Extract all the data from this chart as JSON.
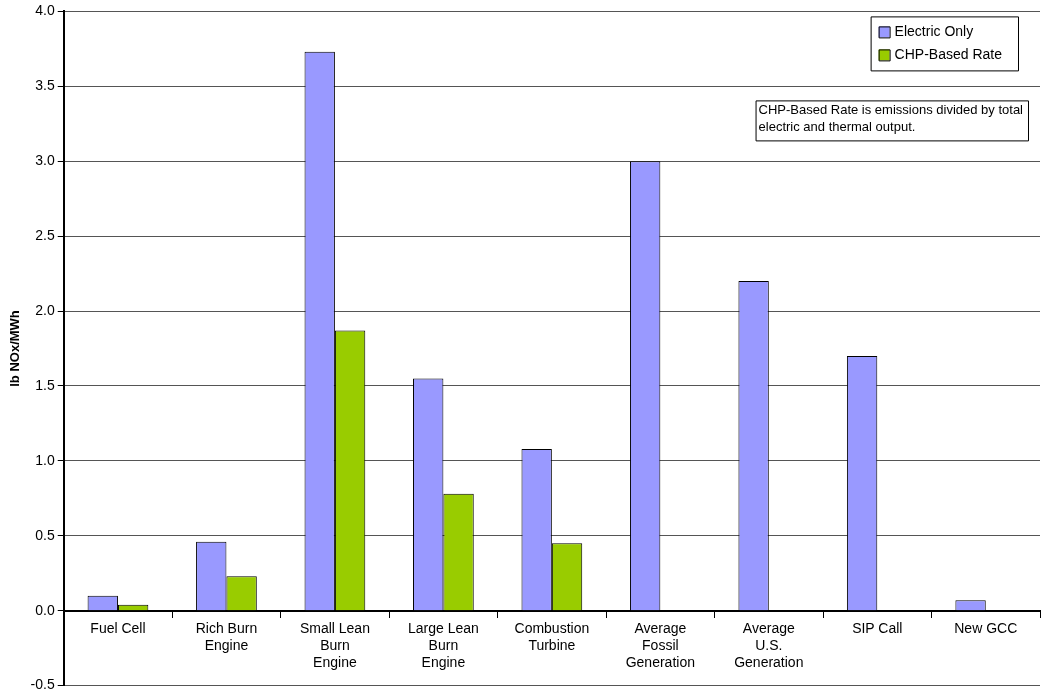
{
  "chart_data": {
    "type": "bar",
    "ylabel": "lb NOx/MWh",
    "categories": [
      "Fuel Cell",
      "Rich Burn Engine",
      "Small Lean Burn Engine",
      "Large Lean Burn Engine",
      "Combustion Turbine",
      "Average Fossil Generation",
      "Average U.S. Generation",
      "SIP Call",
      "New GCC"
    ],
    "series": [
      {
        "name": "Electric Only",
        "color": "#9999ff",
        "values": [
          0.1,
          0.46,
          3.73,
          1.55,
          1.08,
          3.0,
          2.2,
          1.7,
          0.07
        ]
      },
      {
        "name": "CHP-Based Rate",
        "color": "#99cc00",
        "values": [
          0.04,
          0.23,
          1.87,
          0.78,
          0.45,
          null,
          null,
          null,
          null
        ]
      }
    ],
    "ylim": [
      -0.5,
      4.0
    ],
    "yticks": [
      {
        "value": -0.5,
        "label": "-0.5"
      },
      {
        "value": 0,
        "label": "0.0"
      },
      {
        "value": 0.5,
        "label": "0.5"
      },
      {
        "value": 1,
        "label": "1.0"
      },
      {
        "value": 1.5,
        "label": "1.5"
      },
      {
        "value": 2,
        "label": "2.0"
      },
      {
        "value": 2.5,
        "label": "2.5"
      },
      {
        "value": 3,
        "label": "3.0"
      },
      {
        "value": 3.5,
        "label": "3.5"
      },
      {
        "value": 4,
        "label": "4.0"
      }
    ],
    "grid": "y",
    "legend": "top right",
    "annotations": [
      "CHP-Based Rate is emissions divided by total electric and thermal output."
    ]
  }
}
